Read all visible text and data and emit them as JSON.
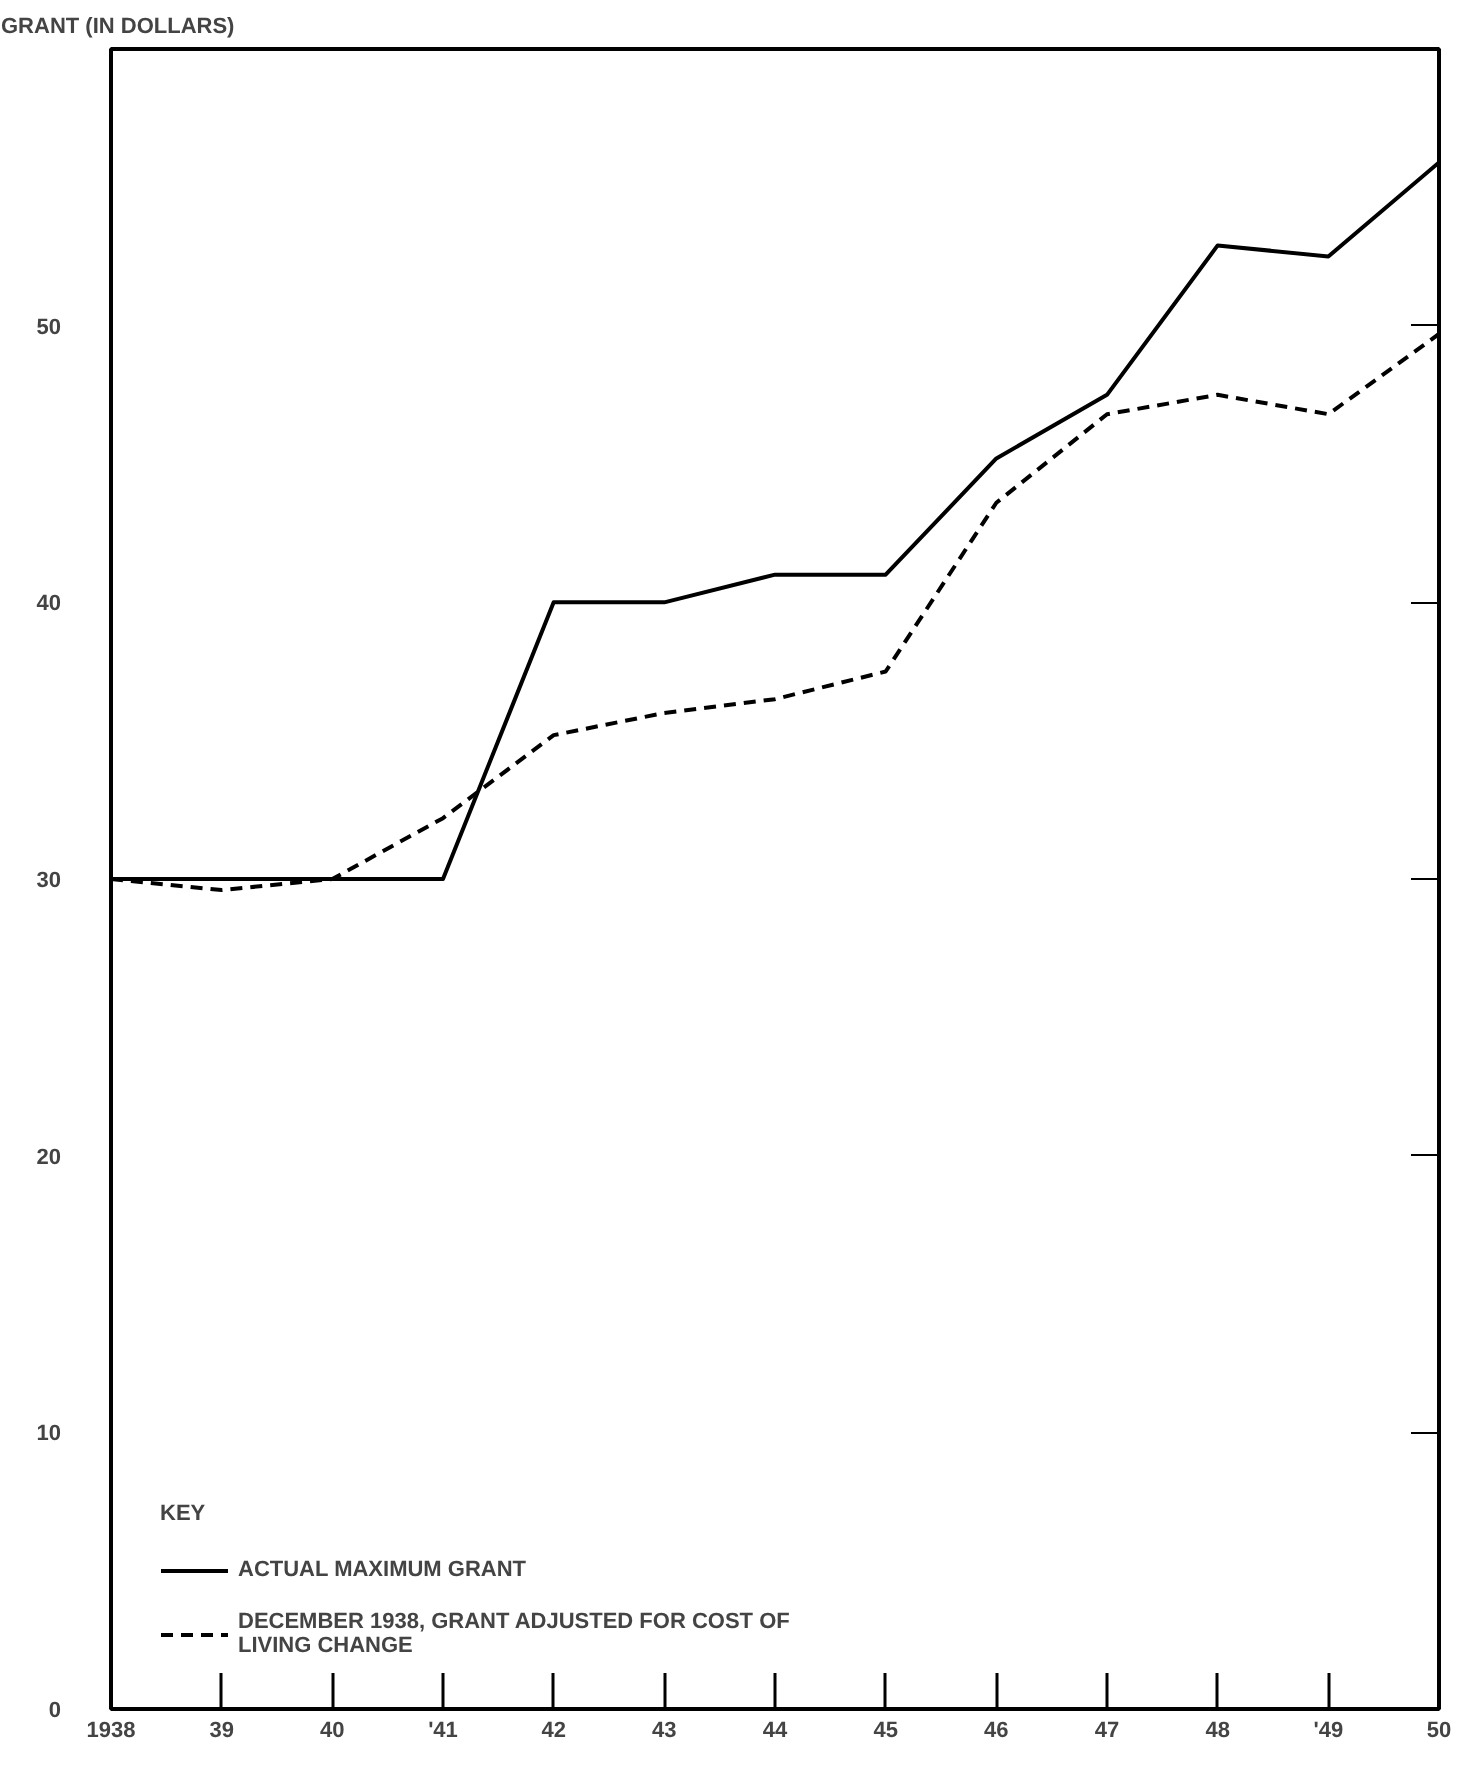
{
  "chart_data": {
    "type": "line",
    "ylabel": "GRANT (IN DOLLARS)",
    "legend_title": "KEY",
    "legend": "bottom left",
    "grid": false,
    "x": [
      1938,
      1939,
      1940,
      1941,
      1942,
      1943,
      1944,
      1945,
      1946,
      1947,
      1948,
      1949,
      1950
    ],
    "xlim": [
      1938,
      1950
    ],
    "xticks": [
      {
        "value": 1938,
        "label": "1938"
      },
      {
        "value": 1939,
        "label": "39"
      },
      {
        "value": 1940,
        "label": "40"
      },
      {
        "value": 1941,
        "label": "'41"
      },
      {
        "value": 1942,
        "label": "42"
      },
      {
        "value": 1943,
        "label": "43"
      },
      {
        "value": 1944,
        "label": "44"
      },
      {
        "value": 1945,
        "label": "45"
      },
      {
        "value": 1946,
        "label": "46"
      },
      {
        "value": 1947,
        "label": "47"
      },
      {
        "value": 1948,
        "label": "48"
      },
      {
        "value": 1949,
        "label": "'49"
      },
      {
        "value": 1950,
        "label": "50"
      }
    ],
    "ylim": [
      0,
      60
    ],
    "yticks": [
      0,
      10,
      20,
      30,
      40,
      50
    ],
    "series": [
      {
        "name": "ACTUAL MAXIMUM GRANT",
        "color": "#000000",
        "line_style": "solid",
        "values": [
          30,
          30,
          30,
          30,
          40,
          40,
          41,
          41,
          45.2,
          47.5,
          52.9,
          52.5,
          55.9
        ]
      },
      {
        "name": "DECEMBER 1938, GRANT ADJUSTED FOR COST OF LIVING CHANGE",
        "color": "#000000",
        "line_style": "dashed",
        "values": [
          30,
          29.6,
          30,
          32.2,
          35.2,
          36,
          36.5,
          37.5,
          43.6,
          46.8,
          47.5,
          46.8,
          49.7
        ]
      }
    ]
  }
}
